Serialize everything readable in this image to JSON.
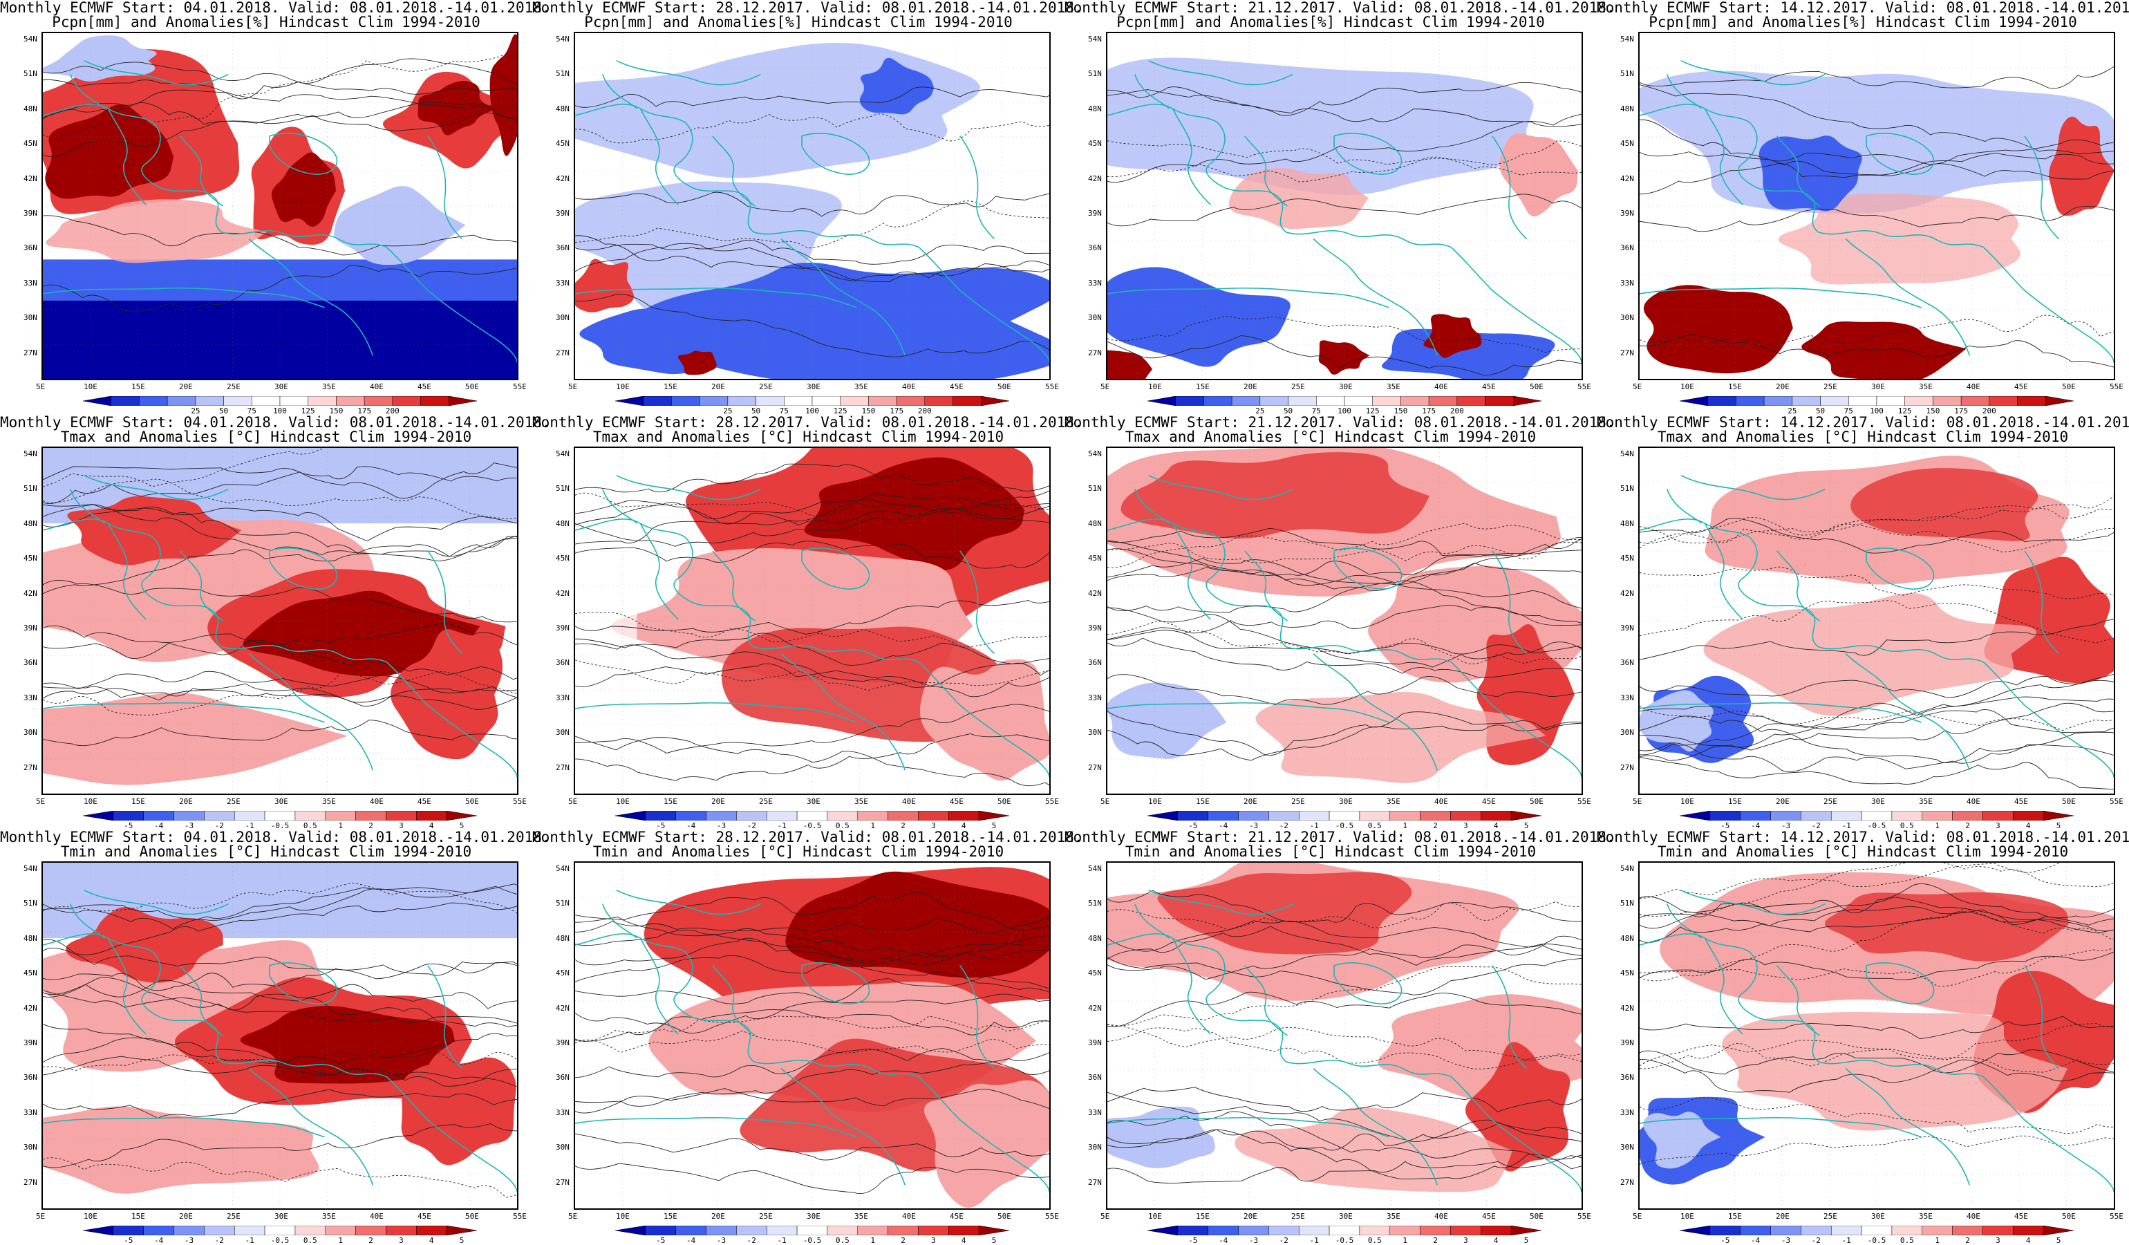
{
  "layout_order": [
    "row1",
    "row2",
    "row3"
  ],
  "panels": [
    {
      "title1": "Monthly ECMWF Start: 04.01.2018. Valid: 08.01.2018.-14.01.2018.",
      "title2": "Pcpn[mm] and Anomalies[%] Hindcast Clim 1994-2010",
      "kind": "pcpn",
      "variant": 0
    },
    {
      "title1": "Monthly ECMWF Start: 28.12.2017. Valid: 08.01.2018.-14.01.2018.",
      "title2": "Pcpn[mm] and Anomalies[%] Hindcast Clim 1994-2010",
      "kind": "pcpn",
      "variant": 1
    },
    {
      "title1": "Monthly ECMWF Start: 21.12.2017. Valid: 08.01.2018.-14.01.2018.",
      "title2": "Pcpn[mm] and Anomalies[%] Hindcast Clim 1994-2010",
      "kind": "pcpn",
      "variant": 2
    },
    {
      "title1": "Monthly ECMWF Start: 14.12.2017. Valid: 08.01.2018.-14.01.2018.",
      "title2": "Pcpn[mm] and Anomalies[%] Hindcast Clim 1994-2010",
      "kind": "pcpn",
      "variant": 3
    },
    {
      "title1": "Monthly ECMWF Start: 04.01.2018. Valid: 08.01.2018.-14.01.2018.",
      "title2": "Tmax and Anomalies [°C] Hindcast Clim 1994-2010",
      "kind": "temp",
      "variant": 0
    },
    {
      "title1": "Monthly ECMWF Start: 28.12.2017. Valid: 08.01.2018.-14.01.2018.",
      "title2": "Tmax and Anomalies [°C] Hindcast Clim 1994-2010",
      "kind": "temp",
      "variant": 1
    },
    {
      "title1": "Monthly ECMWF Start: 21.12.2017. Valid: 08.01.2018.-14.01.2018.",
      "title2": "Tmax and Anomalies [°C] Hindcast Clim 1994-2010",
      "kind": "temp",
      "variant": 2
    },
    {
      "title1": "Monthly ECMWF Start: 14.12.2017. Valid: 08.01.2018.-14.01.2018.",
      "title2": "Tmax and Anomalies [°C] Hindcast Clim 1994-2010",
      "kind": "temp",
      "variant": 3
    },
    {
      "title1": "Monthly ECMWF Start: 04.01.2018. Valid: 08.01.2018.-14.01.2018.",
      "title2": "Tmin and Anomalies [°C] Hindcast Clim 1994-2010",
      "kind": "temp",
      "variant": 0
    },
    {
      "title1": "Monthly ECMWF Start: 28.12.2017. Valid: 08.01.2018.-14.01.2018.",
      "title2": "Tmin and Anomalies [°C] Hindcast Clim 1994-2010",
      "kind": "temp",
      "variant": 1
    },
    {
      "title1": "Monthly ECMWF Start: 21.12.2017. Valid: 08.01.2018.-14.01.2018.",
      "title2": "Tmin and Anomalies [°C] Hindcast Clim 1994-2010",
      "kind": "temp",
      "variant": 2
    },
    {
      "title1": "Monthly ECMWF Start: 14.12.2017. Valid: 08.01.2018.-14.01.2018.",
      "title2": "Tmin and Anomalies [°C] Hindcast Clim 1994-2010",
      "kind": "temp",
      "variant": 3
    }
  ],
  "lat_labels": [
    "54N",
    "51N",
    "48N",
    "45N",
    "42N",
    "39N",
    "36N",
    "33N",
    "30N",
    "27N"
  ],
  "lon_labels": [
    "5E",
    "10E",
    "15E",
    "20E",
    "25E",
    "30E",
    "35E",
    "40E",
    "45E",
    "50E",
    "55E"
  ],
  "pcpn_colorbar": {
    "labels": [
      "25",
      "50",
      "75",
      "100",
      "125",
      "150",
      "175",
      "200"
    ],
    "colors": [
      "#0000a0",
      "#1a2fd0",
      "#3f60ee",
      "#7d93f5",
      "#b8c3f8",
      "#e0e5fb",
      "#ffffff",
      "#ffffff",
      "#fbd7d7",
      "#f6a6a6",
      "#ef6f6f",
      "#e63c3c",
      "#cc1111",
      "#9e0000"
    ]
  },
  "temp_colorbar": {
    "labels": [
      "-5",
      "-4",
      "-3",
      "-2",
      "-1",
      "-0.5",
      "0.5",
      "1",
      "2",
      "3",
      "4",
      "5"
    ],
    "colors": [
      "#0000a0",
      "#1a2fd0",
      "#3f60ee",
      "#7d93f5",
      "#b8c3f8",
      "#e0e5fb",
      "#ffffff",
      "#fbd7d7",
      "#f6a6a6",
      "#ef6f6f",
      "#e63c3c",
      "#cc1111",
      "#9e0000"
    ]
  },
  "colors": {
    "coast": "#19b7b7",
    "contour": "#222222",
    "deep_red": "#9e0000",
    "red": "#e63c3c",
    "light_red": "#f6a6a6",
    "pale_red": "#fbd7d7",
    "deep_blue": "#0000a0",
    "blue": "#3f60ee",
    "light_blue": "#b8c3f8"
  }
}
